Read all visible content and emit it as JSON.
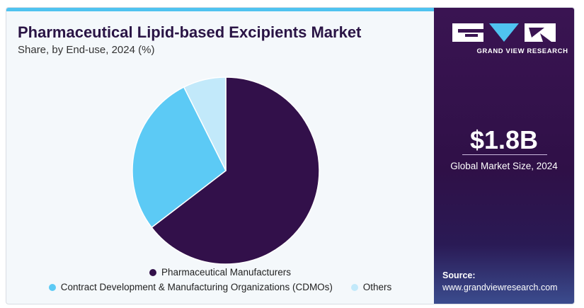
{
  "header": {
    "title": "Pharmaceutical Lipid-based Excipients Market",
    "subtitle": "Share, by End-use, 2024 (%)"
  },
  "chart_data": {
    "type": "pie",
    "title": "Pharmaceutical Lipid-based Excipients Market",
    "subtitle": "Share, by End-use, 2024 (%)",
    "categories": [
      "Pharmaceutical Manufacturers",
      "Contract Development & Manufacturing Organizations (CDMOs)",
      "Others"
    ],
    "values": [
      64.6,
      28.0,
      7.4
    ],
    "colors": [
      "#32104a",
      "#5ccaf5",
      "#c2e9fa"
    ],
    "start_angle_deg": 0,
    "direction": "clockwise",
    "legend_position": "bottom"
  },
  "legend": {
    "items": [
      {
        "label": "Pharmaceutical Manufacturers",
        "color": "#32104a"
      },
      {
        "label": "Contract Development & Manufacturing Organizations (CDMOs)",
        "color": "#5ccaf5"
      },
      {
        "label": "Others",
        "color": "#c2e9fa"
      }
    ]
  },
  "brand": {
    "name": "GRAND VIEW RESEARCH",
    "logo_icon": "gvr-logo-icon",
    "accent": "#4fc3f0",
    "panel_color": "#32104a"
  },
  "market": {
    "value": "$1.8B",
    "label": "Global Market Size, 2024"
  },
  "source": {
    "label": "Source:",
    "url": "www.grandviewresearch.com"
  }
}
